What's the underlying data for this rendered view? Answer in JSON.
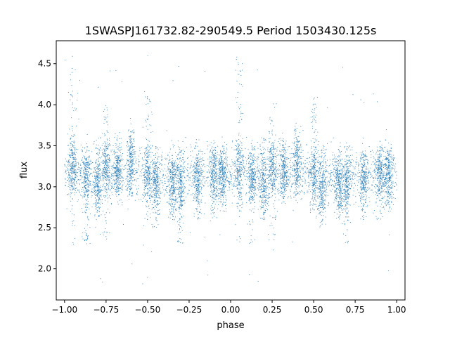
{
  "chart_data": {
    "type": "scatter",
    "title": "1SWASPJ161732.82-290549.5 Period 1503430.125s",
    "xlabel": "phase",
    "ylabel": "flux",
    "xlim": [
      -1.05,
      1.05
    ],
    "ylim": [
      1.62,
      4.78
    ],
    "xticks": [
      -1.0,
      -0.75,
      -0.5,
      -0.25,
      0.0,
      0.25,
      0.5,
      0.75,
      1.0
    ],
    "xtick_labels": [
      "−1.00",
      "−0.75",
      "−0.50",
      "−0.25",
      "0.00",
      "0.25",
      "0.50",
      "0.75",
      "1.00"
    ],
    "yticks": [
      2.0,
      2.5,
      3.0,
      3.5,
      4.0,
      4.5
    ],
    "ytick_labels": [
      "2.0",
      "2.5",
      "3.0",
      "3.5",
      "4.0",
      "4.5"
    ],
    "grid": false,
    "legend": "none",
    "marker_color": "#1f77b4",
    "phase_range": [
      -1.0,
      1.0
    ],
    "phase_period": 1.0,
    "baseline_flux": 3.15,
    "baseline_scatter": 0.17,
    "flux_range_observed": [
      1.8,
      4.62
    ],
    "visit_clusters": [
      {
        "phase": -0.95,
        "center": 3.25,
        "low": 2.3,
        "high": 4.6
      },
      {
        "phase": -0.87,
        "center": 3.1,
        "low": 2.3,
        "high": 3.5
      },
      {
        "phase": -0.8,
        "center": 3.0,
        "low": 2.6,
        "high": 3.6
      },
      {
        "phase": -0.75,
        "center": 3.25,
        "low": 2.35,
        "high": 4.05
      },
      {
        "phase": -0.68,
        "center": 3.2,
        "low": 2.9,
        "high": 3.6
      },
      {
        "phase": -0.6,
        "center": 3.3,
        "low": 2.9,
        "high": 3.7
      },
      {
        "phase": -0.5,
        "center": 3.15,
        "low": 2.6,
        "high": 4.1
      },
      {
        "phase": -0.45,
        "center": 3.0,
        "low": 2.5,
        "high": 3.5
      },
      {
        "phase": -0.35,
        "center": 3.0,
        "low": 2.6,
        "high": 3.4
      },
      {
        "phase": -0.3,
        "center": 3.0,
        "low": 2.3,
        "high": 3.5
      },
      {
        "phase": -0.2,
        "center": 3.1,
        "low": 2.6,
        "high": 3.4
      },
      {
        "phase": -0.1,
        "center": 3.15,
        "low": 2.6,
        "high": 3.5
      },
      {
        "phase": -0.05,
        "center": 3.15,
        "low": 2.7,
        "high": 3.45
      },
      {
        "phase": 0.05,
        "center": 3.25,
        "low": 2.3,
        "high": 4.6
      },
      {
        "phase": 0.13,
        "center": 3.1,
        "low": 2.3,
        "high": 3.5
      },
      {
        "phase": 0.2,
        "center": 3.0,
        "low": 2.6,
        "high": 3.6
      },
      {
        "phase": 0.25,
        "center": 3.25,
        "low": 2.35,
        "high": 4.05
      },
      {
        "phase": 0.32,
        "center": 3.2,
        "low": 2.9,
        "high": 3.6
      },
      {
        "phase": 0.4,
        "center": 3.3,
        "low": 2.9,
        "high": 3.7
      },
      {
        "phase": 0.5,
        "center": 3.15,
        "low": 2.6,
        "high": 4.1
      },
      {
        "phase": 0.55,
        "center": 3.0,
        "low": 2.5,
        "high": 3.5
      },
      {
        "phase": 0.65,
        "center": 3.0,
        "low": 2.6,
        "high": 3.4
      },
      {
        "phase": 0.7,
        "center": 3.0,
        "low": 2.3,
        "high": 3.5
      },
      {
        "phase": 0.8,
        "center": 3.1,
        "low": 2.6,
        "high": 3.4
      },
      {
        "phase": 0.9,
        "center": 3.15,
        "low": 2.6,
        "high": 3.5
      },
      {
        "phase": 0.95,
        "center": 3.15,
        "low": 2.7,
        "high": 3.45
      }
    ]
  }
}
